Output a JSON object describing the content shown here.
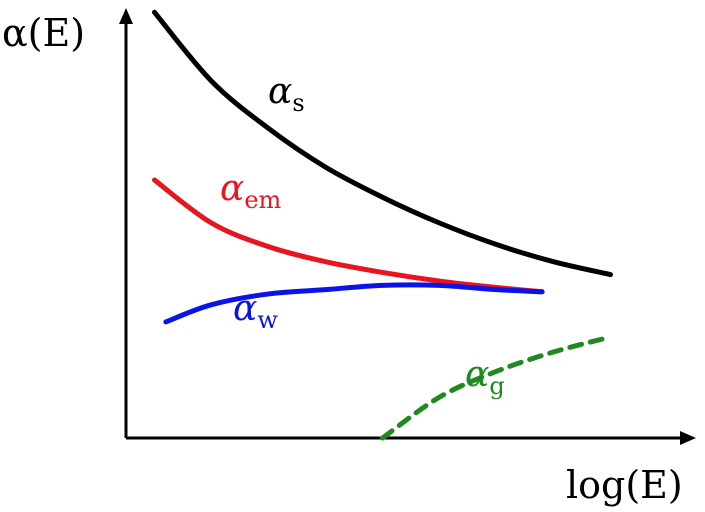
{
  "chart_data": {
    "type": "line",
    "x_axis_label": "log(E)",
    "y_axis_label": "α(E)",
    "grid": false,
    "legend": "inline labels",
    "xlim": [
      0,
      10
    ],
    "ylim": [
      0,
      10
    ],
    "series": [
      {
        "name": "s",
        "label": "αs",
        "symbol": "α",
        "subscript": "s",
        "color": "#000000",
        "style": "solid",
        "points": [
          [
            0.5,
            9.9
          ],
          [
            1.5,
            8.3
          ],
          [
            2.5,
            7.2
          ],
          [
            3.5,
            6.3
          ],
          [
            4.5,
            5.6
          ],
          [
            5.5,
            5.0
          ],
          [
            6.5,
            4.5
          ],
          [
            7.5,
            4.1
          ],
          [
            8.5,
            3.8
          ]
        ]
      },
      {
        "name": "em",
        "label": "αem",
        "symbol": "α",
        "subscript": "em",
        "color": "#e8141e",
        "style": "solid",
        "points": [
          [
            0.5,
            6.0
          ],
          [
            1.5,
            5.0
          ],
          [
            2.5,
            4.45
          ],
          [
            3.5,
            4.1
          ],
          [
            4.5,
            3.85
          ],
          [
            5.5,
            3.65
          ],
          [
            6.5,
            3.5
          ],
          [
            7.3,
            3.4
          ]
        ]
      },
      {
        "name": "w",
        "label": "αw",
        "symbol": "α",
        "subscript": "w",
        "color": "#0a14e6",
        "style": "solid",
        "points": [
          [
            0.7,
            2.7
          ],
          [
            1.5,
            3.1
          ],
          [
            2.5,
            3.35
          ],
          [
            3.5,
            3.45
          ],
          [
            4.5,
            3.55
          ],
          [
            5.5,
            3.55
          ],
          [
            6.5,
            3.45
          ],
          [
            7.3,
            3.4
          ]
        ]
      },
      {
        "name": "g",
        "label": "αg",
        "symbol": "α",
        "subscript": "g",
        "color": "#1f8a1f",
        "style": "dashed",
        "points": [
          [
            4.5,
            0.0
          ],
          [
            5.5,
            0.95
          ],
          [
            6.5,
            1.55
          ],
          [
            7.5,
            2.0
          ],
          [
            8.5,
            2.35
          ]
        ]
      }
    ]
  }
}
